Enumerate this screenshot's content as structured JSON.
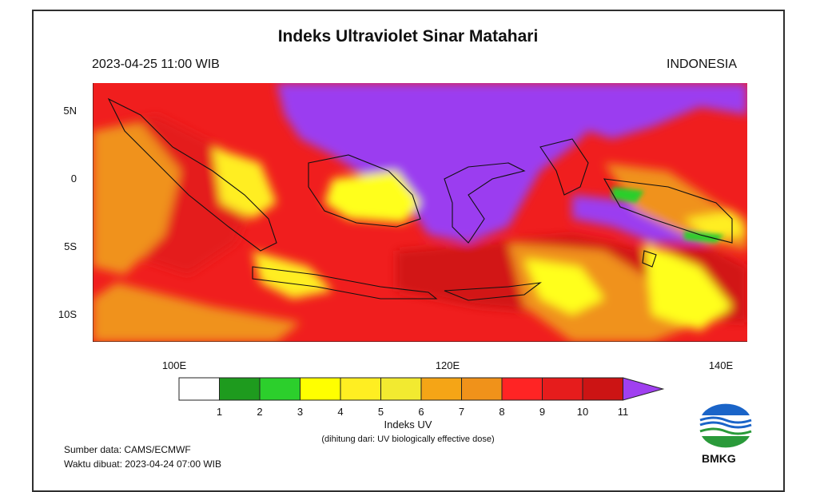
{
  "title": "Indeks Ultraviolet Sinar Matahari",
  "datetime": "2023-04-25  11:00 WIB",
  "region": "INDONESIA",
  "map": {
    "lat_labels": [
      "5N",
      "0",
      "5S",
      "10S"
    ],
    "lon_labels": [
      "100E",
      "120E",
      "140E"
    ]
  },
  "colorbar": {
    "title": "Indeks UV",
    "note": "(dihitung dari: UV biologically effective dose)",
    "labels": [
      "1",
      "2",
      "3",
      "4",
      "5",
      "6",
      "7",
      "8",
      "9",
      "10",
      "11"
    ],
    "colors": [
      "#ffffff",
      "#1e9b1e",
      "#2ccf2c",
      "#ffff00",
      "#ffee22",
      "#f2ea30",
      "#f5a516",
      "#f0921a",
      "#ff2424",
      "#e61c1c",
      "#cc1414",
      "#a040f0"
    ]
  },
  "source": "Sumber data: CAMS/ECMWF",
  "issued": "Waktu dibuat: 2023-04-24 07:00 WIB",
  "logo_text": "BMKG"
}
